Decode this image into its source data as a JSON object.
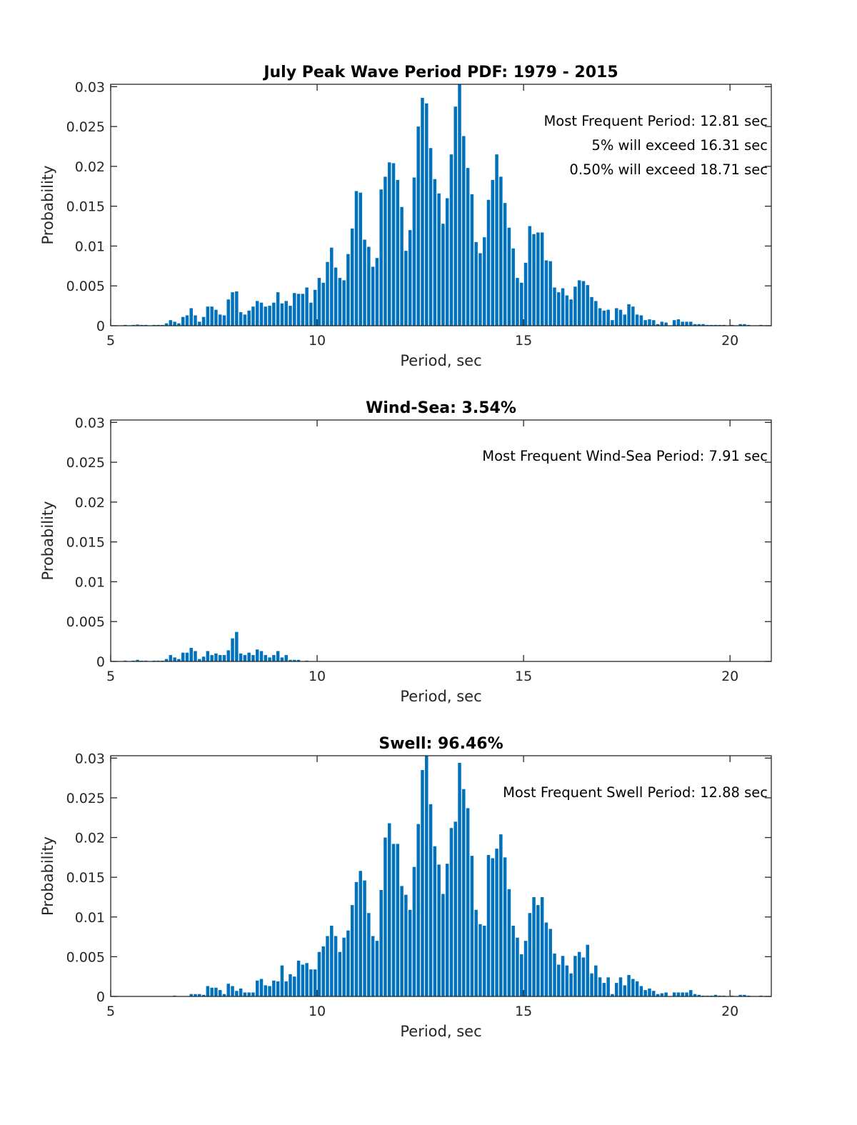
{
  "figure_title": "July Peak Wave Period PDF: 1979 - 2015",
  "chart_data": [
    {
      "type": "bar",
      "title": "July Peak Wave Period PDF: 1979 - 2015",
      "xlabel": "Period, sec",
      "ylabel": "Probability",
      "xlim": [
        5,
        21
      ],
      "ylim": [
        0,
        0.0303
      ],
      "xticks": [
        5,
        10,
        15,
        20
      ],
      "xtick_labels": [
        "5",
        "10",
        "15",
        "20"
      ],
      "yticks": [
        0,
        0.005,
        0.01,
        0.015,
        0.02,
        0.025,
        0.03
      ],
      "ytick_labels": [
        "0",
        "0.005",
        "0.01",
        "0.015",
        "0.02",
        "0.025",
        "0.03"
      ],
      "grid": false,
      "bar_color": "#0072BD",
      "annotations": [
        "Most Frequent Period: 12.81 sec",
        "5% will exceed 16.31 sec",
        "0.50% will exceed 18.71 sec"
      ],
      "x_start": 5.35,
      "x_step": 0.1,
      "values": [
        0.0001,
        0,
        0.0001,
        0.00015,
        0.0001,
        0.0001,
        0,
        0.0001,
        0.0001,
        0.0001,
        0.0003,
        0.0007,
        0.0005,
        0.0003,
        0.0011,
        0.0013,
        0.0022,
        0.0013,
        0.0005,
        0.0011,
        0.0024,
        0.0024,
        0.002,
        0.0014,
        0.0013,
        0.0033,
        0.0042,
        0.0043,
        0.0017,
        0.0014,
        0.0019,
        0.0024,
        0.0031,
        0.0029,
        0.0024,
        0.0025,
        0.0029,
        0.0042,
        0.0028,
        0.0031,
        0.0025,
        0.0041,
        0.004,
        0.004,
        0.0048,
        0.0029,
        0.0045,
        0.006,
        0.0054,
        0.008,
        0.0098,
        0.0073,
        0.006,
        0.0057,
        0.009,
        0.0122,
        0.0169,
        0.0167,
        0.0108,
        0.0099,
        0.0074,
        0.0085,
        0.0171,
        0.0187,
        0.0205,
        0.0204,
        0.0183,
        0.0149,
        0.0094,
        0.012,
        0.0186,
        0.025,
        0.0286,
        0.0279,
        0.0223,
        0.0184,
        0.0166,
        0.0128,
        0.016,
        0.0215,
        0.0275,
        0.0304,
        0.0238,
        0.0198,
        0.0165,
        0.0105,
        0.0091,
        0.0111,
        0.0158,
        0.0183,
        0.0215,
        0.0187,
        0.0154,
        0.0123,
        0.0097,
        0.006,
        0.0054,
        0.0079,
        0.0125,
        0.0115,
        0.0117,
        0.0117,
        0.0082,
        0.0081,
        0.0048,
        0.0042,
        0.0047,
        0.0038,
        0.0033,
        0.0049,
        0.0057,
        0.0056,
        0.0051,
        0.0036,
        0.0031,
        0.0022,
        0.0019,
        0.002,
        0.0007,
        0.0022,
        0.002,
        0.0014,
        0.0027,
        0.0024,
        0.0014,
        0.0013,
        0.0007,
        0.0008,
        0.0007,
        0.0002,
        0.0005,
        0.0004,
        0,
        0.0007,
        0.0008,
        0.0005,
        0.0005,
        0.0005,
        0.0002,
        0.0002,
        0.0002,
        0.0001,
        0.0001,
        0.0001,
        0.0001,
        0.0001,
        0,
        0.0001,
        0,
        0.0002,
        0.0002,
        0.0001,
        0,
        0,
        0.0001
      ]
    },
    {
      "type": "bar",
      "title": "Wind-Sea: 3.54%",
      "xlabel": "Period, sec",
      "ylabel": "Probability",
      "xlim": [
        5,
        21
      ],
      "ylim": [
        0,
        0.0303
      ],
      "xticks": [
        5,
        10,
        15,
        20
      ],
      "xtick_labels": [
        "5",
        "10",
        "15",
        "20"
      ],
      "yticks": [
        0,
        0.005,
        0.01,
        0.015,
        0.02,
        0.025,
        0.03
      ],
      "ytick_labels": [
        "0",
        "0.005",
        "0.01",
        "0.015",
        "0.02",
        "0.025",
        "0.03"
      ],
      "grid": false,
      "bar_color": "#0072BD",
      "annotations": [
        "Most Frequent Wind-Sea Period: 7.91 sec"
      ],
      "x_start": 5.35,
      "x_step": 0.1,
      "values": [
        0.0001,
        0,
        0.0001,
        0.0002,
        0.0001,
        0.0001,
        0,
        0.0001,
        0.0001,
        0.0001,
        0.0003,
        0.0008,
        0.0005,
        0.0003,
        0.0011,
        0.0011,
        0.0017,
        0.0013,
        0.0003,
        0.0006,
        0.0013,
        0.0008,
        0.001,
        0.0008,
        0.0008,
        0.0014,
        0.0029,
        0.0037,
        0.001,
        0.0008,
        0.0011,
        0.0008,
        0.0015,
        0.0013,
        0.0008,
        0.0005,
        0.0008,
        0.0013,
        0.0005,
        0.0008,
        0.0002,
        0.0002,
        0.0002,
        0,
        0.0001
      ]
    },
    {
      "type": "bar",
      "title": "Swell: 96.46%",
      "xlabel": "Period, sec",
      "ylabel": "Probability",
      "xlim": [
        5,
        21
      ],
      "ylim": [
        0,
        0.0303
      ],
      "xticks": [
        5,
        10,
        15,
        20
      ],
      "xtick_labels": [
        "5",
        "10",
        "15",
        "20"
      ],
      "yticks": [
        0,
        0.005,
        0.01,
        0.015,
        0.02,
        0.025,
        0.03
      ],
      "ytick_labels": [
        "0",
        "0.005",
        "0.01",
        "0.015",
        "0.02",
        "0.025",
        "0.03"
      ],
      "grid": false,
      "bar_color": "#0072BD",
      "annotations": [
        "Most Frequent Swell Period: 12.88 sec"
      ],
      "x_start": 5.35,
      "x_step": 0.1,
      "values": [
        0,
        0,
        0,
        0,
        0,
        0,
        0,
        0,
        0,
        0,
        0,
        0,
        0.0001,
        0,
        0,
        0,
        0.0003,
        0.0003,
        0.0003,
        0.0002,
        0.0013,
        0.0011,
        0.0011,
        0.0008,
        0.0003,
        0.0016,
        0.0013,
        0.0007,
        0.001,
        0.0005,
        0.0005,
        0.0005,
        0.002,
        0.0022,
        0.0014,
        0.0013,
        0.002,
        0.0019,
        0.0039,
        0.0019,
        0.0028,
        0.0025,
        0.0045,
        0.004,
        0.0042,
        0.0034,
        0.0034,
        0.0056,
        0.0063,
        0.0076,
        0.0089,
        0.0076,
        0.0056,
        0.0074,
        0.0083,
        0.0115,
        0.0144,
        0.0158,
        0.0146,
        0.0105,
        0.0076,
        0.007,
        0.0134,
        0.02,
        0.0218,
        0.0192,
        0.0192,
        0.0139,
        0.0128,
        0.0109,
        0.0163,
        0.0217,
        0.0285,
        0.0304,
        0.0242,
        0.0189,
        0.0166,
        0.0129,
        0.0167,
        0.0212,
        0.022,
        0.0294,
        0.0261,
        0.0237,
        0.0177,
        0.0109,
        0.0091,
        0.0089,
        0.0178,
        0.0174,
        0.0186,
        0.0204,
        0.0175,
        0.0135,
        0.0089,
        0.0074,
        0.0053,
        0.007,
        0.0105,
        0.0125,
        0.0115,
        0.0125,
        0.0093,
        0.0085,
        0.0054,
        0.004,
        0.0051,
        0.0039,
        0.0029,
        0.0051,
        0.0056,
        0.0049,
        0.0065,
        0.0029,
        0.0039,
        0.0024,
        0.0017,
        0.0024,
        0.0003,
        0.0017,
        0.0024,
        0.0014,
        0.0027,
        0.0022,
        0.0019,
        0.0013,
        0.0008,
        0.001,
        0.0007,
        0.0003,
        0.0004,
        0.0005,
        0,
        0.0005,
        0.0005,
        0.0005,
        0.0005,
        0.0008,
        0.0003,
        0.0002,
        0.0001,
        0.0001,
        0.0001,
        0.0002,
        0.0001,
        0.0001,
        0,
        0.0001,
        0,
        0.0002,
        0.0002,
        0.0001,
        0,
        0,
        0.0001
      ]
    }
  ]
}
